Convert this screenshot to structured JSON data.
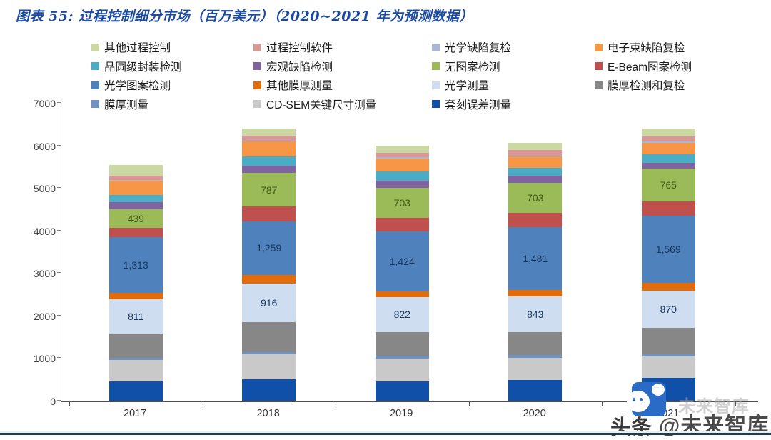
{
  "title": "图表 55:  过程控制细分市场（百万美元）（2020~2021 年为预测数据）",
  "colors": {
    "title_text": "#1b4aa2",
    "y_axis_line": "#808080",
    "x_axis_line": "#4d4d4d",
    "divider": "#213b47",
    "watermark_icon_bg": "#2b6bc8"
  },
  "legend": {
    "position": "top",
    "order": [
      "其他过程控制",
      "过程控制软件",
      "光学缺陷复检",
      "电子束缺陷复检",
      "晶圆级封装检测",
      "宏观缺陷检测",
      "无图案检测",
      "E-Beam图案检测",
      "光学图案检测",
      "其他膜厚测量",
      "光学测量",
      "膜厚检测和复检",
      "膜厚测量",
      "CD-SEM关键尺寸测量",
      "套刻误差测量"
    ]
  },
  "watermark": {
    "ghost": "未来智库",
    "brand": "头条",
    "handle": "@未来智库"
  },
  "chart_data": {
    "type": "bar",
    "stacked": true,
    "title": "过程控制细分市场（百万美元）",
    "xlabel": "",
    "ylabel": "",
    "categories": [
      "2017",
      "2018",
      "2019",
      "2020",
      "2021"
    ],
    "ylim": [
      0,
      7000
    ],
    "yticks": [
      "0",
      "1000",
      "2000",
      "3000",
      "4000",
      "5000",
      "6000",
      "7000"
    ],
    "grid": false,
    "legend_position": "top",
    "series_note": "listed bottom-to-top of stack; unlabeled values estimated from bar heights",
    "series": [
      {
        "name": "套刻误差测量",
        "color": "#1150a8",
        "values": [
          450,
          510,
          460,
          485,
          535
        ]
      },
      {
        "name": "CD-SEM关键尺寸测量",
        "color": "#c9c9c9",
        "values": [
          500,
          580,
          535,
          530,
          510
        ]
      },
      {
        "name": "膜厚测量",
        "color": "#7191c1",
        "values": [
          60,
          60,
          55,
          55,
          55
        ]
      },
      {
        "name": "膜厚检测和复检",
        "color": "#878787",
        "values": [
          565,
          690,
          565,
          540,
          620
        ]
      },
      {
        "name": "光学测量",
        "color": "#cfddf0",
        "values": [
          811,
          916,
          822,
          843,
          870
        ],
        "labels": [
          "811",
          "916",
          "822",
          "843",
          "870"
        ],
        "label_color": "#17375e"
      },
      {
        "name": "其他膜厚测量",
        "color": "#e36c0a",
        "values": [
          150,
          200,
          125,
          150,
          185
        ]
      },
      {
        "name": "光学图案检测",
        "color": "#4f81bd",
        "values": [
          1313,
          1259,
          1424,
          1481,
          1569
        ],
        "labels": [
          "1,313",
          "1,259",
          "1,424",
          "1,481",
          "1,569"
        ],
        "label_color": "#16365c"
      },
      {
        "name": "E-Beam图案检测",
        "color": "#c0504d",
        "values": [
          210,
          350,
          310,
          335,
          340
        ]
      },
      {
        "name": "无图案检测",
        "color": "#9bbb59",
        "values": [
          439,
          787,
          703,
          703,
          765
        ],
        "labels": [
          "439",
          "787",
          "703",
          "703",
          "765"
        ],
        "label_color": "#3f5a14"
      },
      {
        "name": "宏观缺陷检测",
        "color": "#8064a2",
        "values": [
          170,
          165,
          180,
          170,
          140
        ]
      },
      {
        "name": "晶圆级封装检测",
        "color": "#4bacc6",
        "values": [
          170,
          225,
          215,
          185,
          200
        ]
      },
      {
        "name": "电子束缺陷复检",
        "color": "#f79646",
        "values": [
          340,
          350,
          295,
          265,
          280
        ]
      },
      {
        "name": "光学缺陷复检",
        "color": "#a9b6d5",
        "values": [
          10,
          15,
          30,
          20,
          20
        ]
      },
      {
        "name": "过程控制软件",
        "color": "#d99795",
        "values": [
          95,
          120,
          100,
          125,
          125
        ]
      },
      {
        "name": "其他过程控制",
        "color": "#ccd8a4",
        "values": [
          260,
          165,
          170,
          180,
          185
        ]
      }
    ]
  }
}
